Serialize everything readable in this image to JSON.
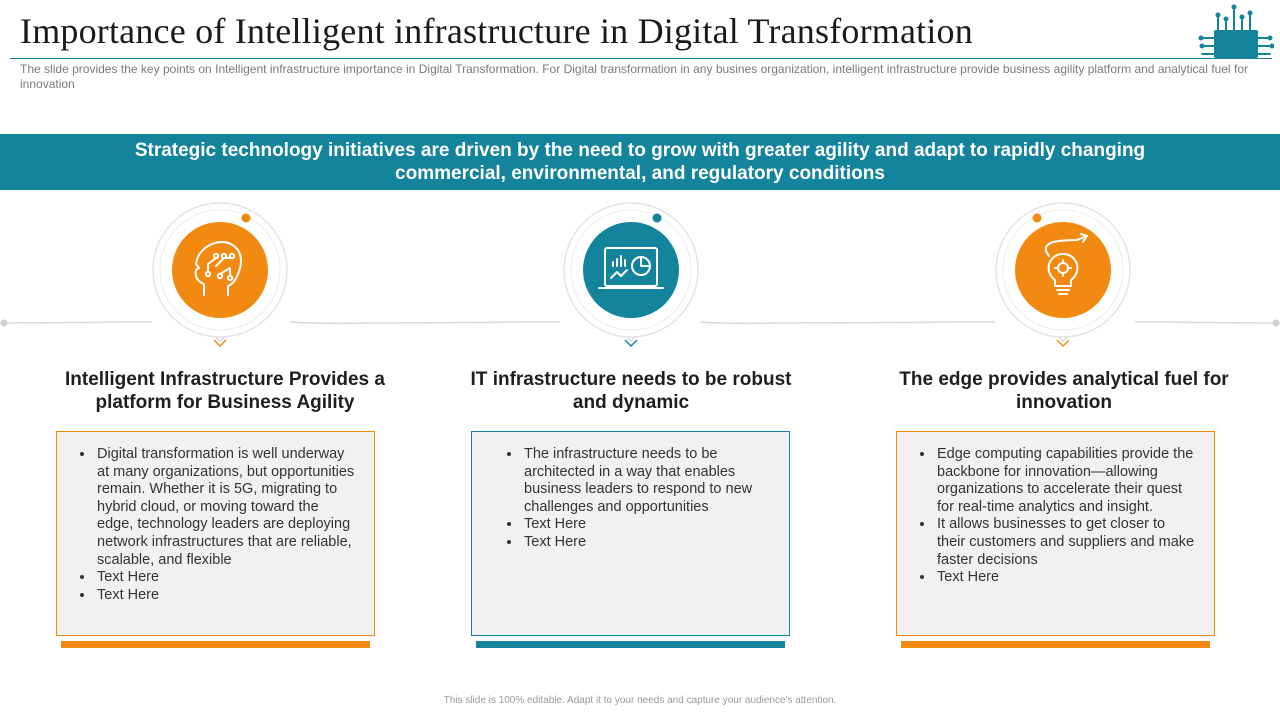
{
  "header": {
    "title": "Importance of Intelligent infrastructure in Digital Transformation",
    "subtitle": "The slide provides the key points on Intelligent infrastructure importance in Digital Transformation.  For Digital transformation in any busines organization, intelligent infrastructure provide business agility platform and analytical fuel for innovation"
  },
  "banner": {
    "text": "Strategic technology initiatives are driven by the need to grow with greater agility and adapt to rapidly changing commercial, environmental, and regulatory conditions"
  },
  "columns": [
    {
      "icon": "brain-circuit-icon",
      "accent": "#f28a12",
      "heading": "Intelligent Infrastructure Provides a platform for Business Agility",
      "bullets": [
        "Digital transformation is well underway at many organizations, but opportunities remain. Whether it is 5G, migrating to hybrid cloud, or moving toward the edge, technology leaders are deploying network infrastructures that are reliable, scalable, and flexible",
        "Text Here",
        "Text Here"
      ]
    },
    {
      "icon": "analytics-laptop-icon",
      "accent": "#13849b",
      "heading": "IT infrastructure needs to be robust and dynamic",
      "bullets": [
        "The infrastructure needs to be architected in a way that enables business leaders to respond to new challenges and opportunities",
        "Text Here",
        "Text Here"
      ]
    },
    {
      "icon": "lightbulb-gear-icon",
      "accent": "#f28a12",
      "heading": "The edge provides analytical fuel for innovation",
      "bullets": [
        "Edge computing capabilities provide the backbone for innovation—allowing organizations to accelerate their quest for real-time analytics and insight.",
        "It allows businesses to get closer to their customers and suppliers and make faster decisions",
        "Text Here"
      ]
    }
  ],
  "footer": {
    "note": "This slide is 100% editable. Adapt it to your needs and capture your audience's attention."
  },
  "colors": {
    "teal": "#13849b",
    "orange": "#f28a12",
    "card_background": "#f1f1f1"
  }
}
